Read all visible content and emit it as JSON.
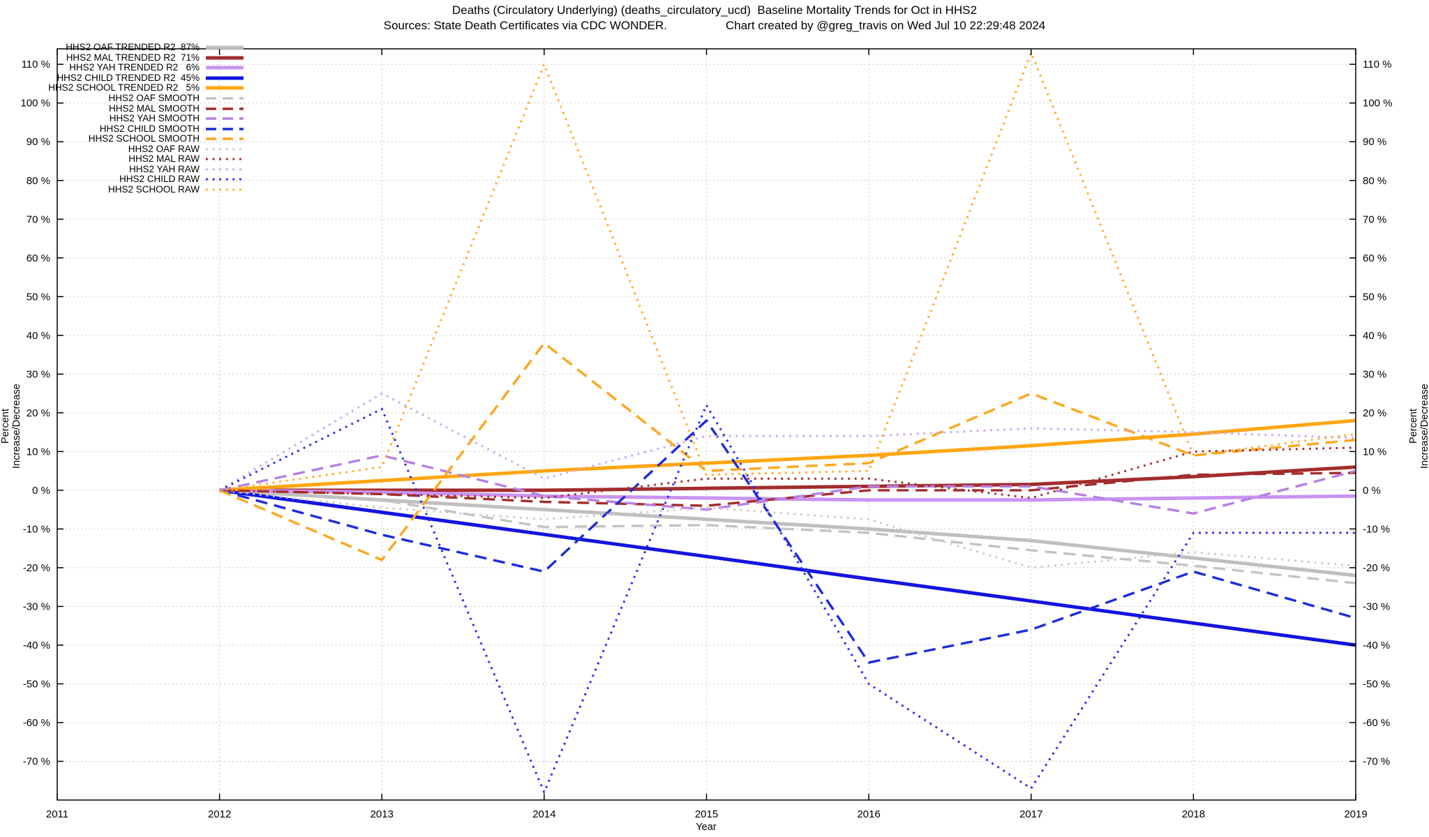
{
  "title": {
    "line1": "Deaths (Circulatory Underlying) (deaths_circulatory_ucd)  Baseline Mortality Trends for Oct in HHS2",
    "sources": "Sources: State Death Certificates via CDC WONDER.",
    "credit": "Chart created by @greg_travis on Wed Jul 10 22:29:48 2024"
  },
  "chart_data": {
    "type": "line",
    "title": "Deaths (Circulatory Underlying) (deaths_circulatory_ucd)  Baseline Mortality Trends for Oct in HHS2",
    "xlabel": "Year",
    "ylabel_left": "Percent Increase/Decrease",
    "ylabel_right": "Percent Increase/Decrease",
    "x_ticks": [
      2011,
      2012,
      2013,
      2014,
      2015,
      2016,
      2017,
      2018,
      2019
    ],
    "y_ticks": [
      -70,
      -60,
      -50,
      -40,
      -30,
      -20,
      -10,
      0,
      10,
      20,
      30,
      40,
      50,
      60,
      70,
      80,
      90,
      100,
      110
    ],
    "y_tick_suffix": " %",
    "x_range": [
      2011,
      2019
    ],
    "y_range": [
      -80,
      114
    ],
    "grid": true,
    "legend_position": "top-left",
    "categories": [
      2012,
      2013,
      2014,
      2015,
      2016,
      2017,
      2018,
      2019
    ],
    "series": [
      {
        "id": "hhs2-oaf-trended",
        "name": "HHS2 OAF TRENDED R2  87%",
        "group": "trended",
        "color": "#bfbfbf",
        "values": [
          0,
          -2.5,
          -5,
          -7.5,
          -10,
          -13,
          -17.5,
          -22
        ]
      },
      {
        "id": "hhs2-mal-trended",
        "name": "HHS2 MAL TRENDED R2  71%",
        "group": "trended",
        "color": "#a32c2c",
        "values": [
          0,
          0,
          0,
          0.5,
          1,
          1.5,
          3.5,
          6
        ]
      },
      {
        "id": "hhs2-yah-trended",
        "name": "HHS2 YAH TRENDED R2   6%",
        "group": "trended",
        "color": "#c993f2",
        "values": [
          0,
          -0.5,
          -1.5,
          -2,
          -2.5,
          -2.5,
          -2,
          -1.5
        ]
      },
      {
        "id": "hhs2-child-trended",
        "name": "HHS2 CHILD TRENDED R2  45%",
        "group": "trended",
        "color": "#1414e0",
        "values": [
          0,
          -5.7,
          -11.4,
          -17.1,
          -22.9,
          -28.6,
          -34.3,
          -40
        ]
      },
      {
        "id": "hhs2-school-trended",
        "name": "HHS2 SCHOOL TRENDED R2   5%",
        "group": "trended",
        "color": "#ffa510",
        "values": [
          0,
          2.5,
          5,
          7,
          9,
          11.5,
          14.5,
          18
        ]
      },
      {
        "id": "hhs2-oaf-smooth",
        "name": "HHS2 OAF SMOOTH",
        "group": "smooth",
        "color": "#c3c3c3",
        "values": [
          0,
          -2.5,
          -9.5,
          -9,
          -11,
          -15.5,
          -19.5,
          -24
        ]
      },
      {
        "id": "hhs2-mal-smooth",
        "name": "HHS2 MAL SMOOTH",
        "group": "smooth",
        "color": "#a32c2c",
        "values": [
          0,
          -1,
          -3,
          -4,
          0,
          0,
          4,
          4.5
        ]
      },
      {
        "id": "hhs2-yah-smooth",
        "name": "HHS2 YAH SMOOTH",
        "group": "smooth",
        "color": "#b67fe4",
        "values": [
          0,
          9,
          -1.5,
          -5,
          1,
          1,
          -6,
          5
        ]
      },
      {
        "id": "hhs2-child-smooth",
        "name": "HHS2 CHILD SMOOTH",
        "group": "smooth",
        "color": "#1c2bdc",
        "values": [
          0,
          -11.5,
          -21,
          18,
          -44.5,
          -36,
          -21,
          -33
        ]
      },
      {
        "id": "hhs2-school-smooth",
        "name": "HHS2 SCHOOL SMOOTH",
        "group": "smooth",
        "color": "#ffa51c",
        "values": [
          0,
          -18,
          38,
          5,
          7,
          25,
          9,
          13
        ]
      },
      {
        "id": "hhs2-oaf-raw",
        "name": "HHS2 OAF RAW",
        "group": "raw",
        "color": "#cbcbcb",
        "values": [
          0,
          -4.5,
          -7.5,
          -4.5,
          -7.5,
          -20,
          -16,
          -19.5
        ]
      },
      {
        "id": "hhs2-mal-raw",
        "name": "HHS2 MAL RAW",
        "group": "raw",
        "color": "#a32c2c",
        "values": [
          0,
          -1,
          -2,
          3,
          3,
          -2,
          10,
          11
        ]
      },
      {
        "id": "hhs2-yah-raw",
        "name": "HHS2 YAH RAW",
        "group": "raw",
        "color": "#cda6f6",
        "values": [
          0,
          25,
          3,
          14,
          14,
          16,
          15,
          13.5
        ]
      },
      {
        "id": "hhs2-child-raw",
        "name": "HHS2 CHILD RAW",
        "group": "raw",
        "color": "#2b2be8",
        "values": [
          0,
          21,
          -78,
          22,
          -50,
          -77,
          -11,
          -11
        ]
      },
      {
        "id": "hhs2-school-raw",
        "name": "HHS2 SCHOOL RAW",
        "group": "raw",
        "color": "#ffad26",
        "values": [
          0,
          6,
          110,
          4,
          5,
          113,
          9,
          14.5
        ]
      }
    ]
  }
}
